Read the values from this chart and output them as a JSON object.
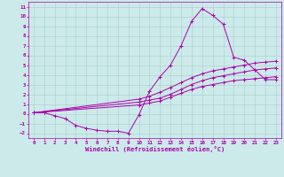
{
  "title": "",
  "xlabel": "Windchill (Refroidissement éolien,°C)",
  "bg_color": "#cceaea",
  "line_color": "#aa00aa",
  "grid_color": "#aacccc",
  "xlim": [
    -0.5,
    23.5
  ],
  "ylim": [
    -2.5,
    11.5
  ],
  "xticks": [
    0,
    1,
    2,
    3,
    4,
    5,
    6,
    7,
    8,
    9,
    10,
    11,
    12,
    13,
    14,
    15,
    16,
    17,
    18,
    19,
    20,
    21,
    22,
    23
  ],
  "yticks": [
    -2,
    -1,
    0,
    1,
    2,
    3,
    4,
    5,
    6,
    7,
    8,
    9,
    10,
    11
  ],
  "curve1_x": [
    0,
    1,
    2,
    3,
    4,
    5,
    6,
    7,
    8,
    9,
    10,
    11,
    12,
    13,
    14,
    15,
    16,
    17,
    18,
    19,
    20,
    21,
    22,
    23
  ],
  "curve1_y": [
    0.1,
    0.1,
    -0.2,
    -0.5,
    -1.2,
    -1.5,
    -1.7,
    -1.8,
    -1.8,
    -2.0,
    -0.1,
    2.3,
    3.8,
    5.0,
    7.0,
    9.5,
    10.8,
    10.1,
    9.2,
    5.8,
    5.5,
    4.5,
    3.5,
    3.5
  ],
  "curve2_x": [
    0,
    10,
    11,
    12,
    13,
    14,
    15,
    16,
    17,
    18,
    19,
    20,
    21,
    22,
    23
  ],
  "curve2_y": [
    0.1,
    1.2,
    1.4,
    1.6,
    2.0,
    2.5,
    3.0,
    3.4,
    3.7,
    3.9,
    4.1,
    4.3,
    4.5,
    4.6,
    4.7
  ],
  "curve3_x": [
    0,
    10,
    11,
    12,
    13,
    14,
    15,
    16,
    17,
    18,
    19,
    20,
    21,
    22,
    23
  ],
  "curve3_y": [
    0.1,
    0.9,
    1.1,
    1.3,
    1.7,
    2.1,
    2.5,
    2.8,
    3.0,
    3.2,
    3.4,
    3.5,
    3.6,
    3.7,
    3.8
  ],
  "curve4_x": [
    0,
    10,
    11,
    12,
    13,
    14,
    15,
    16,
    17,
    18,
    19,
    20,
    21,
    22,
    23
  ],
  "curve4_y": [
    0.1,
    1.5,
    1.8,
    2.2,
    2.7,
    3.2,
    3.7,
    4.1,
    4.4,
    4.6,
    4.8,
    5.0,
    5.2,
    5.3,
    5.4
  ]
}
